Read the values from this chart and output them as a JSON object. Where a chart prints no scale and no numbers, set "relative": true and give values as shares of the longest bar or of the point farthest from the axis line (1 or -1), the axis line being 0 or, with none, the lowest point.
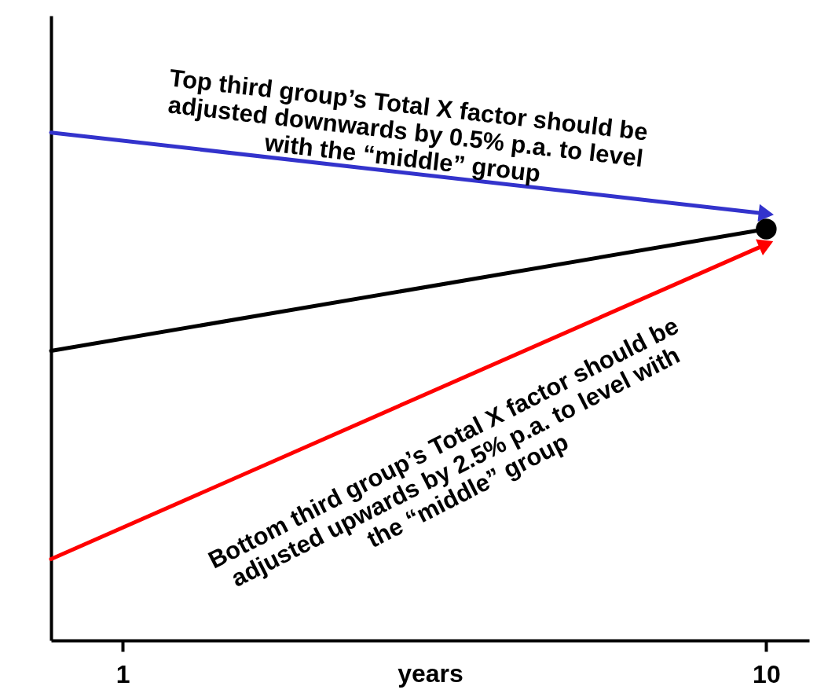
{
  "chart_data": {
    "type": "line",
    "relative": true,
    "xlabel": "years",
    "x": [
      0,
      10
    ],
    "xlim": [
      0,
      10.6
    ],
    "xticks": [
      1,
      10
    ],
    "series": [
      {
        "color": "#3333cc",
        "values": [
          1,
          0.84
        ],
        "marker": "triangle"
      },
      {
        "color": "#000000",
        "values": [
          0.57,
          0.81
        ],
        "marker": "circle"
      },
      {
        "color": "#ff0000",
        "values": [
          0.16,
          0.78
        ],
        "marker": "triangle"
      }
    ],
    "annotations": [
      "Top third group’s Total X factor should be adjusted downwards by 0.5% p.a. to level with the “middle” group",
      "Bottom third group’s Total X factor should be adjusted upwards by 2.5% p.a. to level with the “middle” group"
    ],
    "grid": false
  }
}
